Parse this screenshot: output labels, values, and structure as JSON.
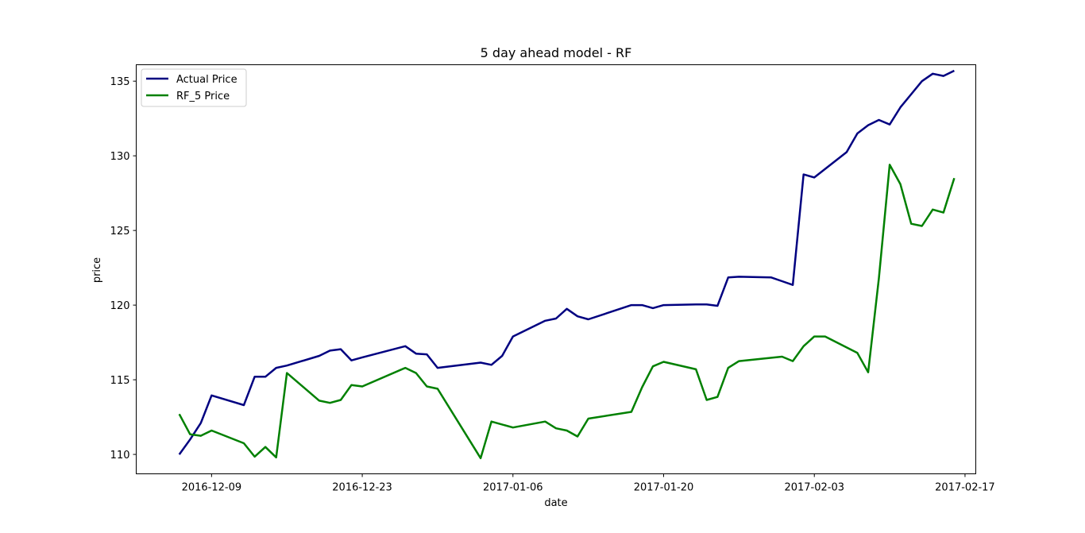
{
  "chart_data": {
    "type": "line",
    "title": "5 day ahead model - RF",
    "xlabel": "date",
    "ylabel": "price",
    "xlim": [
      "2016-12-02",
      "2017-02-18"
    ],
    "ylim": [
      108.7,
      136.1
    ],
    "x_ticks": [
      "2016-12-09",
      "2016-12-23",
      "2017-01-06",
      "2017-01-20",
      "2017-02-03",
      "2017-02-17"
    ],
    "y_ticks": [
      110,
      115,
      120,
      125,
      130,
      135
    ],
    "grid": false,
    "legend_position": "top-left",
    "series": [
      {
        "name": "Actual Price",
        "color": "#000080",
        "points": [
          [
            "2016-12-06",
            110.0
          ],
          [
            "2016-12-07",
            111.0
          ],
          [
            "2016-12-08",
            112.1
          ],
          [
            "2016-12-09",
            113.95
          ],
          [
            "2016-12-12",
            113.3
          ],
          [
            "2016-12-13",
            115.2
          ],
          [
            "2016-12-14",
            115.2
          ],
          [
            "2016-12-15",
            115.8
          ],
          [
            "2016-12-16",
            115.95
          ],
          [
            "2016-12-19",
            116.6
          ],
          [
            "2016-12-20",
            116.95
          ],
          [
            "2016-12-21",
            117.05
          ],
          [
            "2016-12-22",
            116.3
          ],
          [
            "2016-12-23",
            116.5
          ],
          [
            "2016-12-27",
            117.25
          ],
          [
            "2016-12-28",
            116.75
          ],
          [
            "2016-12-29",
            116.7
          ],
          [
            "2016-12-30",
            115.8
          ],
          [
            "2017-01-03",
            116.15
          ],
          [
            "2017-01-04",
            116.0
          ],
          [
            "2017-01-05",
            116.6
          ],
          [
            "2017-01-06",
            117.9
          ],
          [
            "2017-01-09",
            118.95
          ],
          [
            "2017-01-10",
            119.1
          ],
          [
            "2017-01-11",
            119.75
          ],
          [
            "2017-01-12",
            119.25
          ],
          [
            "2017-01-13",
            119.05
          ],
          [
            "2017-01-17",
            120.0
          ],
          [
            "2017-01-18",
            120.0
          ],
          [
            "2017-01-19",
            119.8
          ],
          [
            "2017-01-20",
            120.0
          ],
          [
            "2017-01-23",
            120.05
          ],
          [
            "2017-01-24",
            120.05
          ],
          [
            "2017-01-25",
            119.95
          ],
          [
            "2017-01-26",
            121.85
          ],
          [
            "2017-01-27",
            121.9
          ],
          [
            "2017-01-30",
            121.85
          ],
          [
            "2017-01-31",
            121.6
          ],
          [
            "2017-02-01",
            121.35
          ],
          [
            "2017-02-02",
            128.75
          ],
          [
            "2017-02-03",
            128.55
          ],
          [
            "2017-02-06",
            130.25
          ],
          [
            "2017-02-07",
            131.5
          ],
          [
            "2017-02-08",
            132.05
          ],
          [
            "2017-02-09",
            132.4
          ],
          [
            "2017-02-10",
            132.1
          ],
          [
            "2017-02-11",
            133.25
          ],
          [
            "2017-02-13",
            135.0
          ],
          [
            "2017-02-14",
            135.5
          ],
          [
            "2017-02-15",
            135.35
          ],
          [
            "2017-02-16",
            135.7
          ]
        ]
      },
      {
        "name": "RF_5 Price",
        "color": "#008000",
        "points": [
          [
            "2016-12-06",
            112.7
          ],
          [
            "2016-12-07",
            111.35
          ],
          [
            "2016-12-08",
            111.25
          ],
          [
            "2016-12-09",
            111.6
          ],
          [
            "2016-12-12",
            110.75
          ],
          [
            "2016-12-13",
            109.85
          ],
          [
            "2016-12-14",
            110.5
          ],
          [
            "2016-12-15",
            109.8
          ],
          [
            "2016-12-16",
            115.45
          ],
          [
            "2016-12-19",
            113.6
          ],
          [
            "2016-12-20",
            113.45
          ],
          [
            "2016-12-21",
            113.65
          ],
          [
            "2016-12-22",
            114.65
          ],
          [
            "2016-12-23",
            114.55
          ],
          [
            "2016-12-27",
            115.8
          ],
          [
            "2016-12-28",
            115.45
          ],
          [
            "2016-12-29",
            114.55
          ],
          [
            "2016-12-30",
            114.4
          ],
          [
            "2017-01-03",
            109.75
          ],
          [
            "2017-01-04",
            112.2
          ],
          [
            "2017-01-06",
            111.8
          ],
          [
            "2017-01-09",
            112.2
          ],
          [
            "2017-01-10",
            111.75
          ],
          [
            "2017-01-11",
            111.6
          ],
          [
            "2017-01-12",
            111.2
          ],
          [
            "2017-01-13",
            112.4
          ],
          [
            "2017-01-17",
            112.85
          ],
          [
            "2017-01-18",
            114.5
          ],
          [
            "2017-01-19",
            115.9
          ],
          [
            "2017-01-20",
            116.2
          ],
          [
            "2017-01-23",
            115.7
          ],
          [
            "2017-01-24",
            113.65
          ],
          [
            "2017-01-25",
            113.85
          ],
          [
            "2017-01-26",
            115.8
          ],
          [
            "2017-01-27",
            116.25
          ],
          [
            "2017-01-31",
            116.55
          ],
          [
            "2017-02-01",
            116.25
          ],
          [
            "2017-02-02",
            117.25
          ],
          [
            "2017-02-03",
            117.9
          ],
          [
            "2017-02-04",
            117.9
          ],
          [
            "2017-02-07",
            116.8
          ],
          [
            "2017-02-08",
            115.5
          ],
          [
            "2017-02-09",
            121.8
          ],
          [
            "2017-02-10",
            129.4
          ],
          [
            "2017-02-11",
            128.1
          ],
          [
            "2017-02-12",
            125.45
          ],
          [
            "2017-02-13",
            125.3
          ],
          [
            "2017-02-14",
            126.4
          ],
          [
            "2017-02-15",
            126.2
          ],
          [
            "2017-02-16",
            128.5
          ]
        ]
      }
    ]
  }
}
